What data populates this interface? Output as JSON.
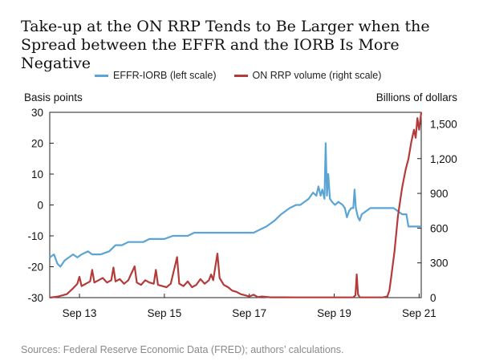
{
  "title": "Take-up at the ON RRP Tends to Be Larger when the Spread between the EFFR and the IORB Is More Negative",
  "source": "Sources: Federal Reserve Economic Data (FRED); authors’ calculations.",
  "chart_data": {
    "type": "line",
    "title": "Take-up at the ON RRP Tends to Be Larger when the Spread between the EFFR and the IORB Is More Negative",
    "left_axis": {
      "unit": "Basis points",
      "ylim": [
        -30,
        30
      ],
      "ticks": [
        -30,
        -20,
        -10,
        0,
        10,
        20,
        30
      ],
      "tick_labels": [
        "-30",
        "-20",
        "-10",
        "0",
        "10",
        "20",
        "30"
      ]
    },
    "right_axis": {
      "unit": "Billions of dollars",
      "ylim": [
        0,
        1600
      ],
      "ticks": [
        0,
        300,
        600,
        900,
        1200,
        1500
      ],
      "tick_labels": [
        "0",
        "300",
        "600",
        "900",
        "1,200",
        "1,500"
      ]
    },
    "x_axis": {
      "range": [
        2013.0,
        2021.75
      ],
      "ticks": [
        2013.7,
        2015.7,
        2017.7,
        2019.7,
        2021.7
      ],
      "tick_labels": [
        "Sep 13",
        "Sep 15",
        "Sep 17",
        "Sep 19",
        "Sep 21"
      ]
    },
    "grid": false,
    "legend": "top",
    "series": [
      {
        "name": "EFFR-IORB (left scale)",
        "axis": "left",
        "color": "#5aa4d6",
        "points": [
          [
            2013.0,
            -17
          ],
          [
            2013.1,
            -16
          ],
          [
            2013.18,
            -19
          ],
          [
            2013.25,
            -20
          ],
          [
            2013.35,
            -18
          ],
          [
            2013.45,
            -17
          ],
          [
            2013.55,
            -16
          ],
          [
            2013.65,
            -17
          ],
          [
            2013.75,
            -16
          ],
          [
            2013.9,
            -15
          ],
          [
            2014.0,
            -16
          ],
          [
            2014.2,
            -16
          ],
          [
            2014.4,
            -15
          ],
          [
            2014.55,
            -13
          ],
          [
            2014.7,
            -13
          ],
          [
            2014.85,
            -12
          ],
          [
            2015.0,
            -12
          ],
          [
            2015.2,
            -12
          ],
          [
            2015.35,
            -11
          ],
          [
            2015.5,
            -11
          ],
          [
            2015.7,
            -11
          ],
          [
            2015.9,
            -10
          ],
          [
            2016.05,
            -10
          ],
          [
            2016.25,
            -10
          ],
          [
            2016.4,
            -9
          ],
          [
            2016.6,
            -9
          ],
          [
            2016.8,
            -9
          ],
          [
            2017.0,
            -9
          ],
          [
            2017.2,
            -9
          ],
          [
            2017.4,
            -9
          ],
          [
            2017.6,
            -9
          ],
          [
            2017.8,
            -9
          ],
          [
            2017.95,
            -8
          ],
          [
            2018.1,
            -7
          ],
          [
            2018.2,
            -6
          ],
          [
            2018.3,
            -5
          ],
          [
            2018.45,
            -3
          ],
          [
            2018.55,
            -2
          ],
          [
            2018.65,
            -1
          ],
          [
            2018.8,
            0
          ],
          [
            2018.9,
            0
          ],
          [
            2019.0,
            1
          ],
          [
            2019.1,
            2
          ],
          [
            2019.2,
            4
          ],
          [
            2019.28,
            3
          ],
          [
            2019.33,
            6
          ],
          [
            2019.38,
            3
          ],
          [
            2019.42,
            5
          ],
          [
            2019.47,
            2
          ],
          [
            2019.5,
            20
          ],
          [
            2019.53,
            3
          ],
          [
            2019.56,
            10
          ],
          [
            2019.6,
            2
          ],
          [
            2019.65,
            1
          ],
          [
            2019.72,
            0
          ],
          [
            2019.8,
            1
          ],
          [
            2019.9,
            0
          ],
          [
            2019.95,
            -1
          ],
          [
            2020.0,
            -4
          ],
          [
            2020.05,
            -2
          ],
          [
            2020.1,
            -1
          ],
          [
            2020.15,
            -1
          ],
          [
            2020.18,
            5
          ],
          [
            2020.21,
            -1
          ],
          [
            2020.26,
            -4
          ],
          [
            2020.3,
            -5
          ],
          [
            2020.35,
            -3
          ],
          [
            2020.45,
            -2
          ],
          [
            2020.55,
            -1
          ],
          [
            2020.7,
            -1
          ],
          [
            2020.85,
            -1
          ],
          [
            2021.0,
            -1
          ],
          [
            2021.1,
            -1
          ],
          [
            2021.2,
            -2
          ],
          [
            2021.3,
            -3
          ],
          [
            2021.4,
            -3
          ],
          [
            2021.45,
            -7
          ],
          [
            2021.55,
            -7
          ],
          [
            2021.65,
            -7
          ],
          [
            2021.75,
            -7
          ]
        ]
      },
      {
        "name": "ON RRP volume (right scale)",
        "axis": "right",
        "color": "#b53b3b",
        "points": [
          [
            2013.0,
            0
          ],
          [
            2013.2,
            10
          ],
          [
            2013.4,
            30
          ],
          [
            2013.55,
            80
          ],
          [
            2013.65,
            120
          ],
          [
            2013.7,
            180
          ],
          [
            2013.75,
            100
          ],
          [
            2013.85,
            120
          ],
          [
            2013.95,
            140
          ],
          [
            2014.0,
            240
          ],
          [
            2014.05,
            130
          ],
          [
            2014.15,
            150
          ],
          [
            2014.25,
            170
          ],
          [
            2014.35,
            130
          ],
          [
            2014.45,
            150
          ],
          [
            2014.5,
            260
          ],
          [
            2014.55,
            140
          ],
          [
            2014.65,
            160
          ],
          [
            2014.75,
            120
          ],
          [
            2014.85,
            150
          ],
          [
            2015.0,
            270
          ],
          [
            2015.05,
            130
          ],
          [
            2015.15,
            110
          ],
          [
            2015.25,
            150
          ],
          [
            2015.35,
            130
          ],
          [
            2015.45,
            120
          ],
          [
            2015.5,
            240
          ],
          [
            2015.55,
            110
          ],
          [
            2015.65,
            100
          ],
          [
            2015.75,
            90
          ],
          [
            2015.85,
            120
          ],
          [
            2016.0,
            350
          ],
          [
            2016.05,
            120
          ],
          [
            2016.15,
            100
          ],
          [
            2016.25,
            140
          ],
          [
            2016.35,
            90
          ],
          [
            2016.45,
            110
          ],
          [
            2016.55,
            160
          ],
          [
            2016.65,
            120
          ],
          [
            2016.75,
            150
          ],
          [
            2016.8,
            200
          ],
          [
            2016.85,
            150
          ],
          [
            2016.95,
            380
          ],
          [
            2017.0,
            170
          ],
          [
            2017.1,
            110
          ],
          [
            2017.2,
            90
          ],
          [
            2017.3,
            60
          ],
          [
            2017.4,
            50
          ],
          [
            2017.5,
            30
          ],
          [
            2017.6,
            20
          ],
          [
            2017.7,
            10
          ],
          [
            2017.8,
            25
          ],
          [
            2017.9,
            5
          ],
          [
            2018.0,
            10
          ],
          [
            2018.2,
            3
          ],
          [
            2018.5,
            3
          ],
          [
            2018.8,
            2
          ],
          [
            2019.0,
            2
          ],
          [
            2019.3,
            2
          ],
          [
            2019.6,
            2
          ],
          [
            2019.9,
            2
          ],
          [
            2020.15,
            3
          ],
          [
            2020.2,
            20
          ],
          [
            2020.23,
            200
          ],
          [
            2020.26,
            30
          ],
          [
            2020.3,
            3
          ],
          [
            2020.5,
            2
          ],
          [
            2020.7,
            2
          ],
          [
            2020.85,
            3
          ],
          [
            2020.95,
            10
          ],
          [
            2021.0,
            60
          ],
          [
            2021.05,
            200
          ],
          [
            2021.12,
            400
          ],
          [
            2021.2,
            700
          ],
          [
            2021.3,
            950
          ],
          [
            2021.38,
            1100
          ],
          [
            2021.45,
            1200
          ],
          [
            2021.52,
            1350
          ],
          [
            2021.58,
            1450
          ],
          [
            2021.62,
            1380
          ],
          [
            2021.66,
            1550
          ],
          [
            2021.7,
            1450
          ],
          [
            2021.75,
            1600
          ]
        ]
      }
    ]
  }
}
